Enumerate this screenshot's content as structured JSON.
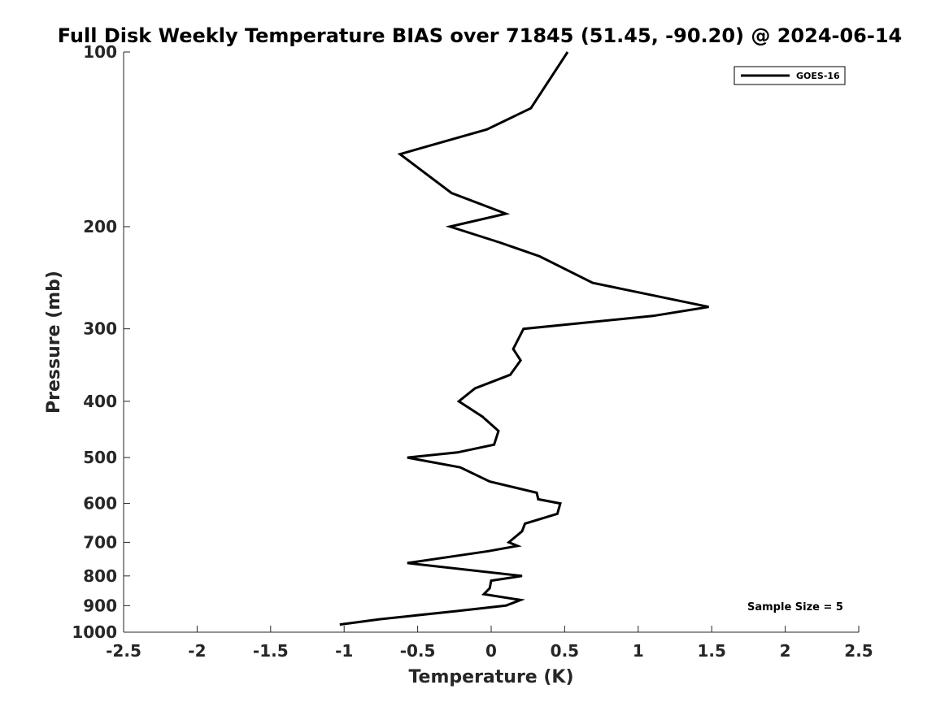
{
  "chart_data": {
    "type": "line",
    "title": "Full Disk Weekly Temperature BIAS over 71845 (51.45, -90.20) @ 2024-06-14",
    "xlabel": "Temperature (K)",
    "ylabel": "Pressure (mb)",
    "xlim": [
      -2.5,
      2.5
    ],
    "ylim": [
      1000,
      100
    ],
    "y_scale": "log",
    "x_ticks": [
      -2.5,
      -2,
      -1.5,
      -1,
      -0.5,
      0,
      0.5,
      1,
      1.5,
      2,
      2.5
    ],
    "x_tick_labels": [
      "-2.5",
      "-2",
      "-1.5",
      "-1",
      "-0.5",
      "0",
      "0.5",
      "1",
      "1.5",
      "2",
      "2.5"
    ],
    "y_ticks": [
      100,
      200,
      300,
      400,
      500,
      600,
      700,
      800,
      900,
      1000
    ],
    "y_tick_labels": [
      "100",
      "200",
      "300",
      "400",
      "500",
      "600",
      "700",
      "800",
      "900",
      "1000"
    ],
    "grid": false,
    "legend_position": "top-right",
    "annotation": "Sample Size = 5",
    "series": [
      {
        "name": "GOES-16",
        "color": "#000000",
        "points": [
          {
            "t": 0.52,
            "p": 100
          },
          {
            "t": 0.27,
            "p": 125
          },
          {
            "t": -0.03,
            "p": 136
          },
          {
            "t": -0.62,
            "p": 150
          },
          {
            "t": -0.27,
            "p": 175
          },
          {
            "t": 0.1,
            "p": 190
          },
          {
            "t": -0.28,
            "p": 200
          },
          {
            "t": 0.06,
            "p": 213
          },
          {
            "t": 0.33,
            "p": 225
          },
          {
            "t": 0.69,
            "p": 250
          },
          {
            "t": 1.48,
            "p": 275
          },
          {
            "t": 1.1,
            "p": 285
          },
          {
            "t": 0.22,
            "p": 300
          },
          {
            "t": 0.15,
            "p": 325
          },
          {
            "t": 0.2,
            "p": 340
          },
          {
            "t": 0.13,
            "p": 360
          },
          {
            "t": -0.11,
            "p": 380
          },
          {
            "t": -0.22,
            "p": 400
          },
          {
            "t": -0.06,
            "p": 425
          },
          {
            "t": 0.05,
            "p": 450
          },
          {
            "t": 0.02,
            "p": 475
          },
          {
            "t": -0.23,
            "p": 490
          },
          {
            "t": -0.57,
            "p": 500
          },
          {
            "t": -0.21,
            "p": 520
          },
          {
            "t": -0.01,
            "p": 550
          },
          {
            "t": 0.31,
            "p": 575
          },
          {
            "t": 0.32,
            "p": 590
          },
          {
            "t": 0.47,
            "p": 600
          },
          {
            "t": 0.45,
            "p": 625
          },
          {
            "t": 0.23,
            "p": 650
          },
          {
            "t": 0.21,
            "p": 670
          },
          {
            "t": 0.12,
            "p": 700
          },
          {
            "t": 0.18,
            "p": 710
          },
          {
            "t": -0.02,
            "p": 725
          },
          {
            "t": -0.57,
            "p": 760
          },
          {
            "t": 0.21,
            "p": 800
          },
          {
            "t": 0.0,
            "p": 815
          },
          {
            "t": -0.01,
            "p": 840
          },
          {
            "t": -0.05,
            "p": 860
          },
          {
            "t": 0.2,
            "p": 880
          },
          {
            "t": 0.1,
            "p": 900
          },
          {
            "t": -0.24,
            "p": 920
          },
          {
            "t": -0.76,
            "p": 950
          },
          {
            "t": -1.03,
            "p": 970
          }
        ]
      }
    ]
  }
}
